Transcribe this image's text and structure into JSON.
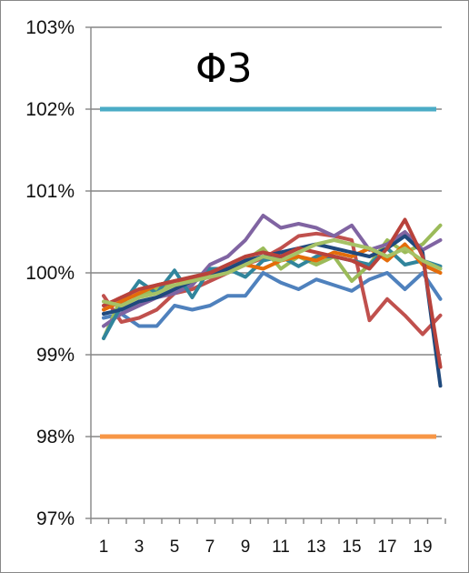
{
  "chart_data": {
    "type": "line",
    "title": "Φ3",
    "xlabel": "",
    "ylabel": "",
    "ylim": [
      97,
      103
    ],
    "y_ticks": [
      {
        "value": 97,
        "label": "97%"
      },
      {
        "value": 98,
        "label": "98%"
      },
      {
        "value": 99,
        "label": "99%"
      },
      {
        "value": 100,
        "label": "100%"
      },
      {
        "value": 101,
        "label": "101%"
      },
      {
        "value": 102,
        "label": "102%"
      },
      {
        "value": 103,
        "label": "103%"
      }
    ],
    "x_ticks": [
      1,
      3,
      5,
      7,
      9,
      11,
      13,
      15,
      17,
      19
    ],
    "x_tick_labels": [
      "1",
      "3",
      "5",
      "7",
      "9",
      "11",
      "13",
      "15",
      "17",
      "19"
    ],
    "x": [
      1,
      2,
      3,
      4,
      5,
      6,
      7,
      8,
      9,
      10,
      11,
      12,
      13,
      14,
      15,
      16,
      17,
      18,
      19,
      20
    ],
    "grid": true,
    "reference_lines": [
      {
        "value": 102,
        "color": "#4BACC6"
      },
      {
        "value": 98,
        "color": "#F79646"
      }
    ],
    "series": [
      {
        "color": "#4F81BD",
        "values": [
          99.45,
          99.5,
          99.35,
          99.35,
          99.6,
          99.55,
          99.6,
          99.72,
          99.72,
          100.0,
          99.88,
          99.8,
          99.92,
          99.85,
          99.78,
          99.92,
          100.0,
          99.8,
          100.0,
          99.68
        ]
      },
      {
        "color": "#C0504D",
        "values": [
          99.72,
          99.4,
          99.45,
          99.55,
          99.75,
          99.8,
          99.9,
          100.0,
          100.1,
          100.18,
          100.3,
          100.45,
          100.48,
          100.45,
          100.4,
          99.42,
          99.68,
          99.48,
          99.25,
          99.48
        ]
      },
      {
        "color": "#9BBB59",
        "values": [
          99.2,
          99.7,
          99.72,
          99.8,
          99.9,
          99.95,
          100.0,
          100.05,
          100.15,
          100.3,
          100.05,
          100.2,
          100.1,
          100.2,
          99.9,
          100.1,
          100.4,
          100.25,
          100.35,
          100.58
        ]
      },
      {
        "color": "#8064A2",
        "values": [
          99.35,
          99.5,
          99.6,
          99.7,
          99.75,
          99.85,
          100.1,
          100.2,
          100.4,
          100.7,
          100.55,
          100.6,
          100.55,
          100.45,
          100.58,
          100.28,
          100.35,
          100.5,
          100.28,
          100.4
        ]
      },
      {
        "color": "#31859C",
        "values": [
          99.2,
          99.6,
          99.9,
          99.75,
          100.03,
          99.7,
          100.05,
          100.05,
          99.95,
          100.15,
          100.2,
          100.08,
          100.2,
          100.2,
          100.15,
          100.1,
          100.3,
          100.1,
          100.15,
          100.08
        ]
      },
      {
        "color": "#E46C0A",
        "values": [
          99.55,
          99.65,
          99.75,
          99.85,
          99.9,
          99.92,
          100.0,
          100.05,
          100.1,
          100.05,
          100.15,
          100.2,
          100.15,
          100.25,
          100.2,
          100.3,
          100.15,
          100.35,
          100.1,
          100.0
        ]
      },
      {
        "color": "#1F497D",
        "values": [
          99.5,
          99.55,
          99.65,
          99.7,
          99.8,
          99.9,
          99.95,
          100.05,
          100.15,
          100.2,
          100.25,
          100.3,
          100.35,
          100.3,
          100.25,
          100.2,
          100.3,
          100.45,
          100.25,
          98.62
        ]
      },
      {
        "color": "#B8423B",
        "values": [
          99.6,
          99.7,
          99.8,
          99.85,
          99.9,
          99.95,
          100.0,
          100.1,
          100.2,
          100.25,
          100.2,
          100.3,
          100.25,
          100.2,
          100.15,
          100.05,
          100.3,
          100.65,
          100.2,
          98.85
        ]
      },
      {
        "color": "#A6C266",
        "values": [
          99.65,
          99.6,
          99.7,
          99.75,
          99.85,
          99.9,
          99.95,
          100.0,
          100.1,
          100.2,
          100.15,
          100.25,
          100.35,
          100.4,
          100.35,
          100.3,
          100.2,
          100.3,
          100.15,
          100.05
        ]
      }
    ]
  }
}
